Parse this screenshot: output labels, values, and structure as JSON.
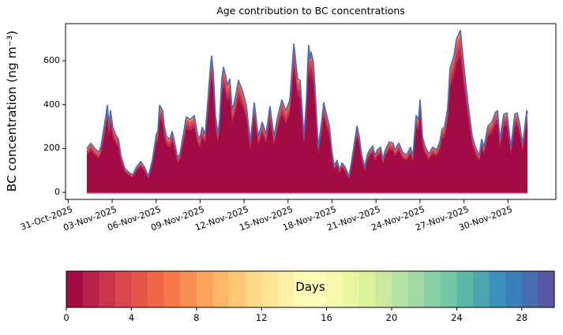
{
  "figure": {
    "title": "Age contribution to BC concentrations",
    "ylabel": "BC concentration (ng m⁻³)"
  },
  "colorbar": {
    "label": "Days",
    "tick_labels": [
      "0",
      "4",
      "8",
      "12",
      "16",
      "20",
      "24",
      "28"
    ],
    "tick_values": [
      0,
      4,
      8,
      12,
      16,
      20,
      24,
      28
    ],
    "vmin": 0,
    "vmax": 30,
    "n_segments": 30,
    "colormap": "Spectral",
    "segment_colors": [
      "#a70b44",
      "#ba2049",
      "#cc344d",
      "#da464d",
      "#e55649",
      "#ef6545",
      "#f67848",
      "#f98e52",
      "#fca35c",
      "#fdb668",
      "#fec776",
      "#fed884",
      "#fee594",
      "#fff0a5",
      "#fffab6",
      "#fbfdb9",
      "#f3faac",
      "#eaf79f",
      "#dcf19a",
      "#c9e99e",
      "#b5e1a2",
      "#a0d9a4",
      "#89d0a5",
      "#72c7a5",
      "#5db8a9",
      "#4ca5b1",
      "#3b91b9",
      "#397fb9",
      "#486cb0",
      "#5759a6"
    ]
  },
  "chart_data": {
    "type": "area",
    "title": "Age contribution to BC concentrations",
    "xlabel": "",
    "ylabel": "BC concentration (ng m⁻³)",
    "x_unit": "days since 01-Nov-2025 00:00",
    "x_tick_labels": [
      "31-Oct-2025",
      "03-Nov-2025",
      "06-Nov-2025",
      "09-Nov-2025",
      "12-Nov-2025",
      "15-Nov-2025",
      "18-Nov-2025",
      "21-Nov-2025",
      "24-Nov-2025",
      "27-Nov-2025",
      "30-Nov-2025"
    ],
    "x_tick_interval_days": 3,
    "y_ticks": [
      0,
      200,
      400,
      600
    ],
    "ylim": [
      -32,
      769
    ],
    "xlim_days": [
      -1.45,
      31.94
    ],
    "grid": false,
    "legend": "none (colorbar encodes BC age in days, Spectral colormap)",
    "total_line_color": "#4b6cb4",
    "baseline_edge_color": "#c23b62",
    "stack_layers_top_to_bottom": [
      {
        "cum_fraction": 1.0,
        "color": "#feea9c",
        "age_days_approx": "8-12"
      },
      {
        "cum_fraction": 0.993,
        "color": "#fdc06f",
        "age_days_approx": "6-8"
      },
      {
        "cum_fraction": 0.985,
        "color": "#f6894f",
        "age_days_approx": "5-6"
      },
      {
        "cum_fraction": 0.972,
        "color": "#ec6145",
        "age_days_approx": "4-5"
      },
      {
        "cum_fraction": 0.948,
        "color": "#da4a50",
        "age_days_approx": "3-4"
      },
      {
        "cum_fraction": 0.9,
        "color": "#c22a4b",
        "age_days_approx": "1-3"
      },
      {
        "cum_fraction": 0.845,
        "color": "#a30b45",
        "age_days_approx": "0-1"
      }
    ],
    "total_series": [
      [
        0.0,
        200
      ],
      [
        0.27,
        224
      ],
      [
        0.54,
        200
      ],
      [
        0.81,
        182
      ],
      [
        0.97,
        212
      ],
      [
        1.24,
        326
      ],
      [
        1.4,
        397
      ],
      [
        1.51,
        302
      ],
      [
        1.61,
        373
      ],
      [
        1.77,
        296
      ],
      [
        1.94,
        266
      ],
      [
        2.15,
        242
      ],
      [
        2.31,
        170
      ],
      [
        2.58,
        110
      ],
      [
        2.85,
        92
      ],
      [
        3.12,
        80
      ],
      [
        3.39,
        116
      ],
      [
        3.66,
        140
      ],
      [
        3.92,
        116
      ],
      [
        4.19,
        74
      ],
      [
        4.46,
        146
      ],
      [
        4.73,
        266
      ],
      [
        4.84,
        278
      ],
      [
        4.95,
        397
      ],
      [
        5.16,
        373
      ],
      [
        5.27,
        302
      ],
      [
        5.43,
        254
      ],
      [
        5.65,
        242
      ],
      [
        5.81,
        278
      ],
      [
        5.97,
        230
      ],
      [
        6.18,
        158
      ],
      [
        6.34,
        176
      ],
      [
        6.61,
        278
      ],
      [
        6.77,
        344
      ],
      [
        7.04,
        332
      ],
      [
        7.31,
        350
      ],
      [
        7.53,
        266
      ],
      [
        7.69,
        242
      ],
      [
        7.85,
        296
      ],
      [
        8.06,
        266
      ],
      [
        8.23,
        409
      ],
      [
        8.39,
        553
      ],
      [
        8.49,
        621
      ],
      [
        8.6,
        553
      ],
      [
        8.76,
        350
      ],
      [
        8.92,
        266
      ],
      [
        9.03,
        326
      ],
      [
        9.19,
        517
      ],
      [
        9.3,
        571
      ],
      [
        9.46,
        529
      ],
      [
        9.57,
        487
      ],
      [
        9.73,
        517
      ],
      [
        9.89,
        373
      ],
      [
        10.1,
        430
      ],
      [
        10.32,
        511
      ],
      [
        10.59,
        463
      ],
      [
        10.86,
        397
      ],
      [
        11.13,
        230
      ],
      [
        11.4,
        409
      ],
      [
        11.67,
        254
      ],
      [
        11.94,
        320
      ],
      [
        12.2,
        266
      ],
      [
        12.47,
        391
      ],
      [
        12.74,
        254
      ],
      [
        13.01,
        350
      ],
      [
        13.28,
        421
      ],
      [
        13.55,
        373
      ],
      [
        13.82,
        421
      ],
      [
        14.09,
        676
      ],
      [
        14.25,
        577
      ],
      [
        14.35,
        517
      ],
      [
        14.52,
        511
      ],
      [
        14.78,
        254
      ],
      [
        14.95,
        421
      ],
      [
        15.05,
        600
      ],
      [
        15.11,
        670
      ],
      [
        15.19,
        610
      ],
      [
        15.27,
        640
      ],
      [
        15.43,
        589
      ],
      [
        15.59,
        409
      ],
      [
        15.75,
        206
      ],
      [
        15.97,
        314
      ],
      [
        16.13,
        409
      ],
      [
        16.29,
        362
      ],
      [
        16.51,
        302
      ],
      [
        16.67,
        194
      ],
      [
        16.83,
        122
      ],
      [
        17.04,
        146
      ],
      [
        17.2,
        104
      ],
      [
        17.37,
        134
      ],
      [
        17.58,
        116
      ],
      [
        17.85,
        74
      ],
      [
        18.01,
        134
      ],
      [
        18.17,
        206
      ],
      [
        18.39,
        302
      ],
      [
        18.55,
        254
      ],
      [
        18.71,
        170
      ],
      [
        18.92,
        116
      ],
      [
        19.09,
        170
      ],
      [
        19.25,
        194
      ],
      [
        19.46,
        212
      ],
      [
        19.62,
        170
      ],
      [
        19.78,
        194
      ],
      [
        20.0,
        206
      ],
      [
        20.16,
        152
      ],
      [
        20.32,
        194
      ],
      [
        20.59,
        230
      ],
      [
        20.86,
        224
      ],
      [
        20.97,
        194
      ],
      [
        21.24,
        224
      ],
      [
        21.51,
        182
      ],
      [
        21.77,
        170
      ],
      [
        22.04,
        206
      ],
      [
        22.2,
        164
      ],
      [
        22.42,
        350
      ],
      [
        22.58,
        332
      ],
      [
        22.69,
        421
      ],
      [
        22.85,
        254
      ],
      [
        23.01,
        212
      ],
      [
        23.28,
        176
      ],
      [
        23.55,
        206
      ],
      [
        23.82,
        194
      ],
      [
        24.03,
        230
      ],
      [
        24.19,
        290
      ],
      [
        24.35,
        296
      ],
      [
        24.57,
        385
      ],
      [
        24.73,
        565
      ],
      [
        25.0,
        625
      ],
      [
        25.16,
        697
      ],
      [
        25.43,
        738
      ],
      [
        25.65,
        589
      ],
      [
        25.81,
        487
      ],
      [
        25.97,
        397
      ],
      [
        26.24,
        254
      ],
      [
        26.45,
        206
      ],
      [
        26.72,
        170
      ],
      [
        26.88,
        242
      ],
      [
        27.04,
        206
      ],
      [
        27.31,
        302
      ],
      [
        27.58,
        320
      ],
      [
        27.8,
        362
      ],
      [
        27.96,
        373
      ],
      [
        28.12,
        242
      ],
      [
        28.39,
        356
      ],
      [
        28.6,
        362
      ],
      [
        28.87,
        206
      ],
      [
        29.14,
        356
      ],
      [
        29.3,
        362
      ],
      [
        29.46,
        314
      ],
      [
        29.68,
        218
      ],
      [
        29.95,
        373
      ],
      [
        30.0,
        360
      ]
    ]
  }
}
